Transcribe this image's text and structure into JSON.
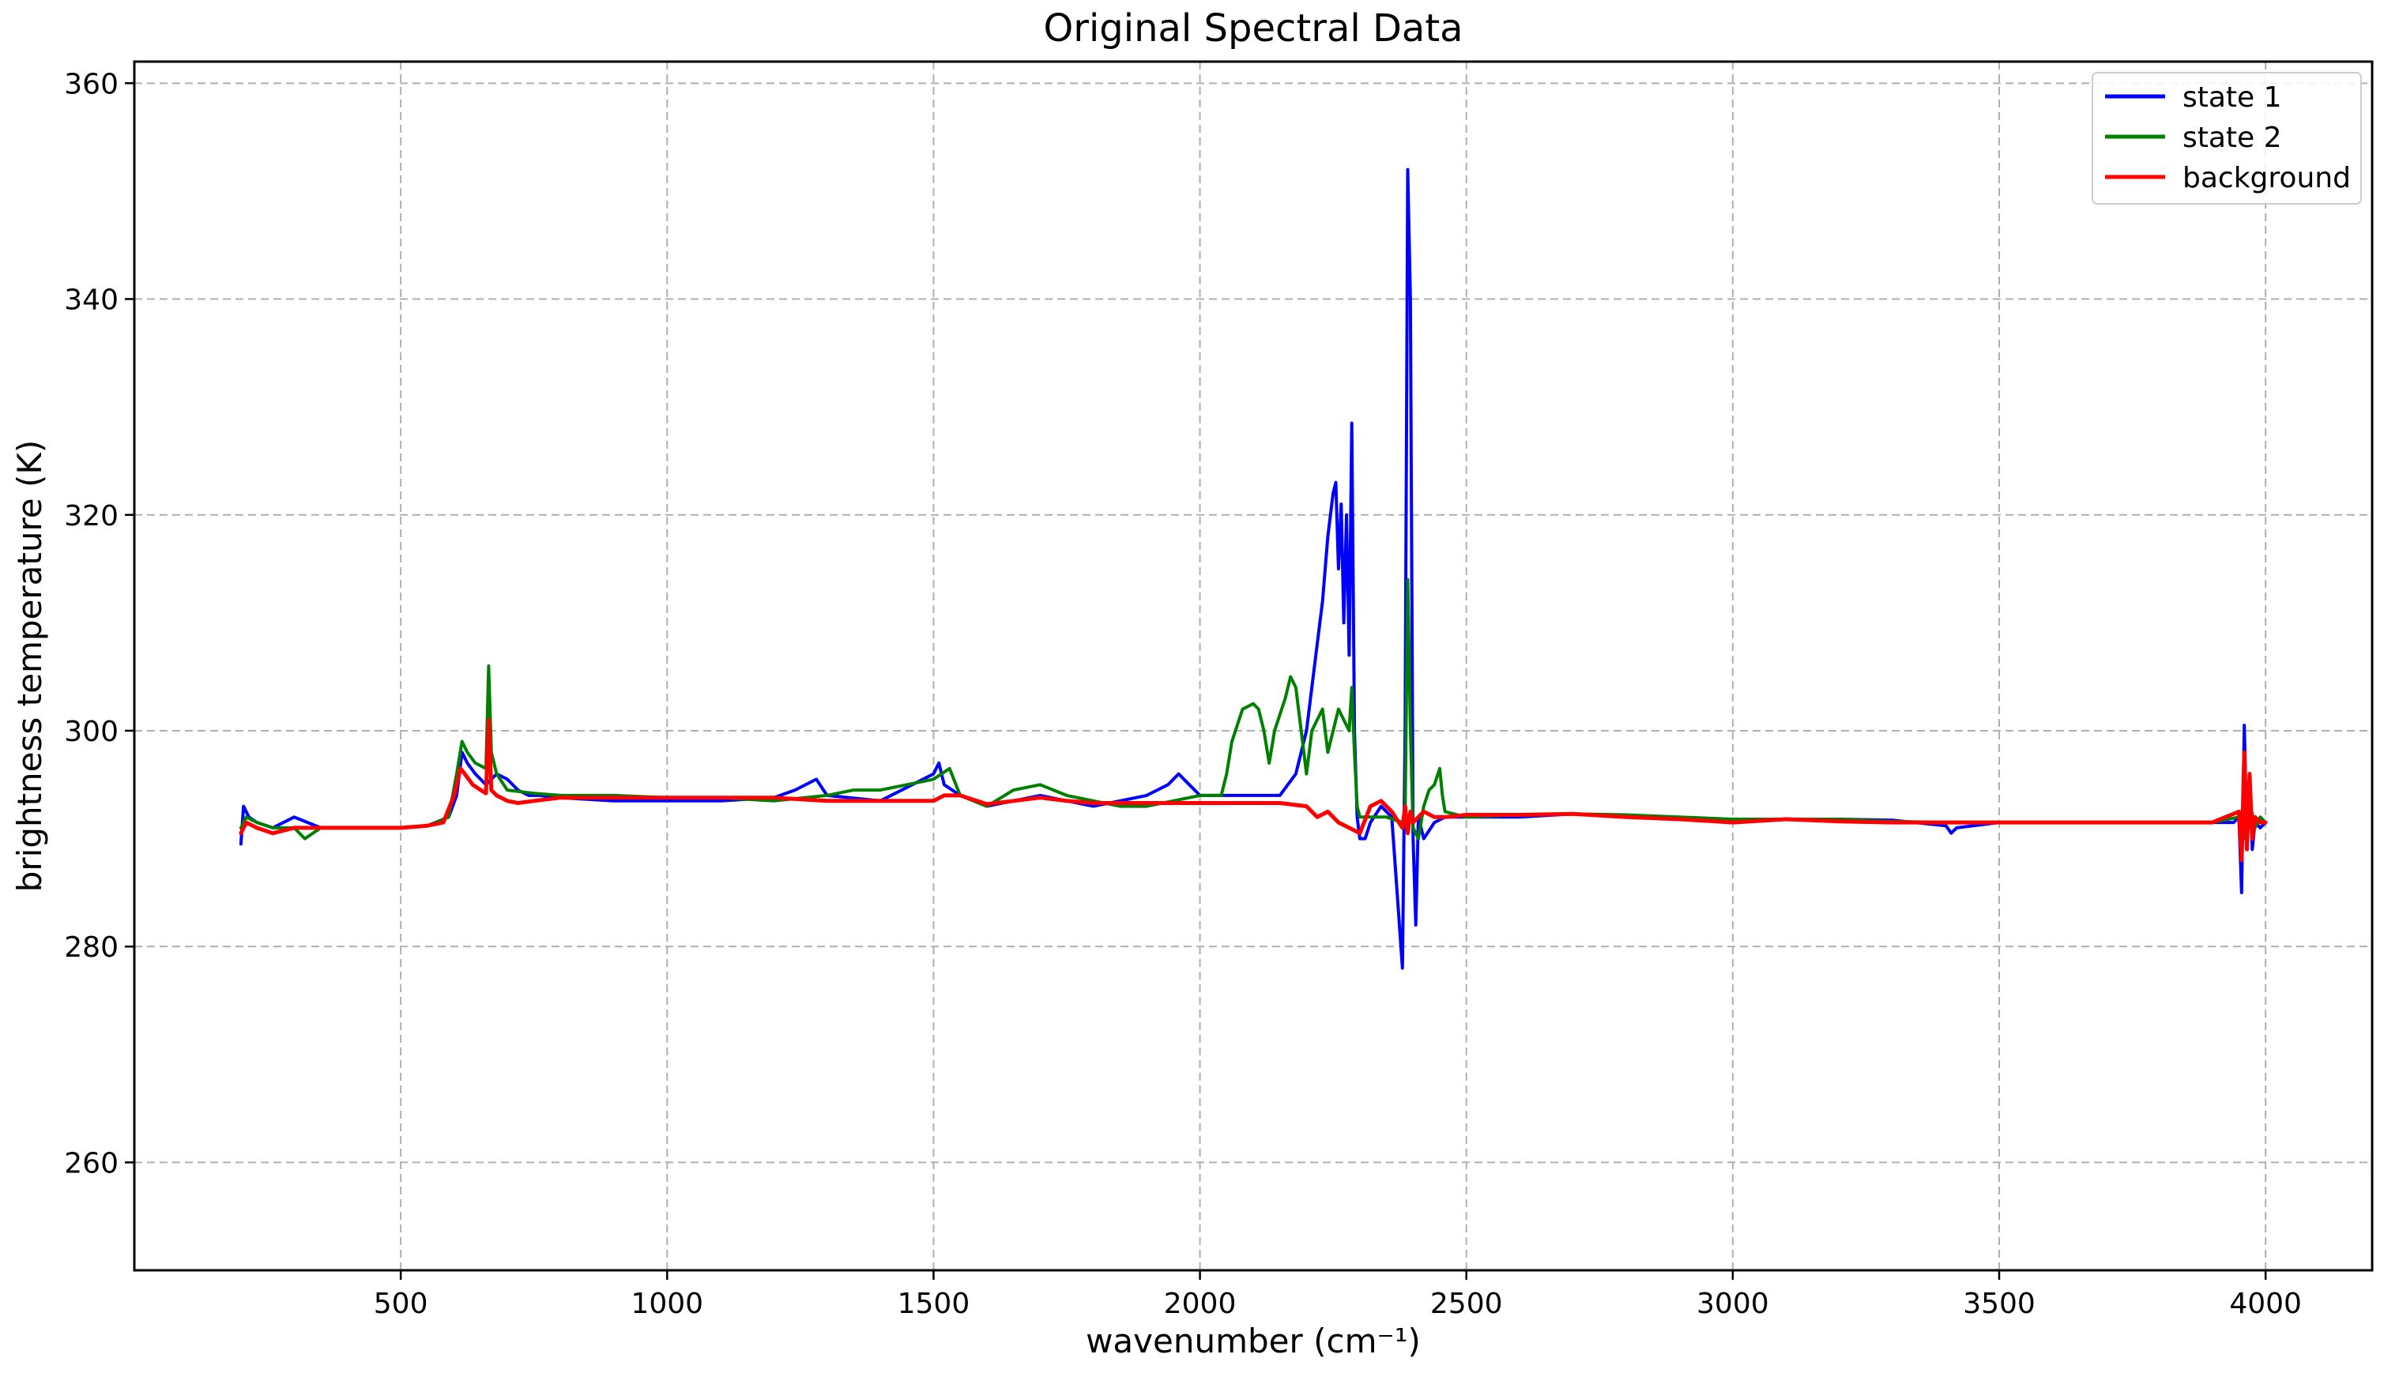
{
  "chart_data": {
    "type": "line",
    "title": "Original Spectral Data",
    "xlabel": "wavenumber (cm⁻¹)",
    "ylabel": "brightness temperature (K)",
    "xlim": [
      0,
      4200
    ],
    "ylim": [
      250,
      362
    ],
    "x_ticks": [
      500,
      1000,
      1500,
      2000,
      2500,
      3000,
      3500,
      4000
    ],
    "y_ticks": [
      260,
      280,
      300,
      320,
      340,
      360
    ],
    "grid": true,
    "legend_position": "top-right",
    "series": [
      {
        "name": "state 1",
        "color": "#0000ff",
        "x": [
          200,
          205,
          215,
          230,
          260,
          300,
          350,
          400,
          450,
          500,
          550,
          590,
          605,
          615,
          625,
          640,
          660,
          680,
          700,
          720,
          740,
          760,
          800,
          900,
          1000,
          1100,
          1200,
          1240,
          1280,
          1300,
          1400,
          1500,
          1510,
          1520,
          1550,
          1600,
          1650,
          1700,
          1750,
          1800,
          1850,
          1900,
          1940,
          1960,
          1980,
          2000,
          2050,
          2100,
          2150,
          2180,
          2200,
          2220,
          2230,
          2240,
          2250,
          2255,
          2260,
          2265,
          2270,
          2275,
          2280,
          2285,
          2290,
          2295,
          2300,
          2310,
          2320,
          2340,
          2360,
          2370,
          2380,
          2385,
          2390,
          2395,
          2400,
          2405,
          2410,
          2420,
          2440,
          2460,
          2500,
          2600,
          2700,
          2800,
          2900,
          3000,
          3100,
          3200,
          3300,
          3400,
          3410,
          3420,
          3500,
          3600,
          3700,
          3800,
          3900,
          3940,
          3950,
          3955,
          3960,
          3965,
          3970,
          3975,
          3980,
          3990,
          4000
        ],
        "y": [
          289.5,
          293,
          292,
          291.5,
          291,
          292,
          291,
          291,
          291,
          291,
          291.2,
          292,
          294,
          298,
          297,
          296,
          295,
          296,
          295.5,
          294.5,
          294,
          294,
          293.8,
          293.5,
          293.5,
          293.5,
          293.8,
          294.5,
          295.5,
          294,
          293.5,
          296,
          297,
          295,
          294,
          293,
          293.5,
          294,
          293.5,
          293,
          293.5,
          294,
          295,
          296,
          295,
          294,
          294,
          294,
          294,
          296,
          300,
          308,
          312,
          318,
          322,
          323,
          315,
          321,
          310,
          320,
          307,
          328.5,
          300,
          292,
          290,
          290,
          291.5,
          293,
          292,
          285,
          278,
          300,
          352,
          340,
          290,
          282,
          292,
          290,
          291.5,
          292,
          292,
          292,
          292.3,
          292,
          291.8,
          291.8,
          291.8,
          291.8,
          291.7,
          291.2,
          290.5,
          291,
          291.5,
          291.5,
          291.5,
          291.5,
          291.5,
          291.5,
          292,
          285,
          300.5,
          290,
          295,
          289,
          291.5,
          291,
          291.5
        ]
      },
      {
        "name": "state 2",
        "color": "#008000",
        "x": [
          200,
          210,
          230,
          260,
          300,
          320,
          350,
          400,
          450,
          500,
          550,
          590,
          605,
          615,
          625,
          640,
          660,
          665,
          670,
          680,
          700,
          750,
          800,
          900,
          1000,
          1100,
          1200,
          1300,
          1350,
          1400,
          1450,
          1500,
          1530,
          1550,
          1600,
          1650,
          1700,
          1750,
          1800,
          1850,
          1900,
          1950,
          2000,
          2040,
          2050,
          2060,
          2080,
          2100,
          2110,
          2120,
          2130,
          2140,
          2160,
          2170,
          2180,
          2190,
          2200,
          2210,
          2220,
          2230,
          2240,
          2250,
          2260,
          2270,
          2280,
          2285,
          2290,
          2295,
          2300,
          2350,
          2380,
          2385,
          2390,
          2395,
          2400,
          2410,
          2420,
          2430,
          2440,
          2450,
          2455,
          2460,
          2500,
          2600,
          2700,
          2800,
          2900,
          3000,
          3100,
          3200,
          3300,
          3400,
          3500,
          3600,
          3700,
          3800,
          3900,
          3950,
          3960,
          3970,
          3980,
          3990,
          4000
        ],
        "y": [
          291,
          292,
          291.5,
          291,
          291,
          290,
          291,
          291,
          291,
          291,
          291.2,
          292,
          296,
          299,
          298,
          297,
          296.5,
          306,
          298,
          296,
          294.5,
          294.2,
          294,
          294,
          293.8,
          293.8,
          293.5,
          294,
          294.5,
          294.5,
          295,
          295.5,
          296.5,
          294,
          293,
          294.5,
          295,
          294,
          293.5,
          293,
          293,
          293.5,
          294,
          294,
          296,
          299,
          302,
          302.5,
          302,
          300,
          297,
          300,
          303,
          305,
          304,
          300,
          296,
          300,
          301,
          302,
          298,
          300,
          302,
          301,
          300,
          304,
          298,
          293,
          292,
          292,
          291.5,
          292,
          314,
          300,
          291,
          290,
          293,
          294.5,
          295,
          296.5,
          294,
          292.5,
          292,
          292.2,
          292.3,
          292.2,
          292,
          291.8,
          291.8,
          291.8,
          291.6,
          291.5,
          291.5,
          291.5,
          291.5,
          291.5,
          291.5,
          292,
          290,
          293.5,
          291,
          292,
          291.5
        ]
      },
      {
        "name": "background",
        "color": "#ff0000",
        "x": [
          200,
          210,
          230,
          260,
          300,
          350,
          400,
          450,
          500,
          550,
          580,
          600,
          612,
          620,
          635,
          650,
          660,
          665,
          670,
          680,
          700,
          720,
          750,
          800,
          900,
          1000,
          1100,
          1200,
          1300,
          1400,
          1500,
          1520,
          1550,
          1600,
          1650,
          1700,
          1750,
          1800,
          1900,
          2000,
          2100,
          2150,
          2200,
          2220,
          2240,
          2260,
          2280,
          2300,
          2320,
          2340,
          2360,
          2380,
          2385,
          2390,
          2395,
          2400,
          2410,
          2420,
          2440,
          2460,
          2500,
          2600,
          2700,
          2800,
          2900,
          3000,
          3100,
          3200,
          3300,
          3400,
          3500,
          3600,
          3700,
          3800,
          3900,
          3950,
          3955,
          3960,
          3965,
          3970,
          3975,
          3980,
          3990,
          4000
        ],
        "y": [
          290.5,
          291.5,
          291,
          290.5,
          291,
          291,
          291,
          291,
          291,
          291.2,
          291.5,
          294,
          296.5,
          296,
          295,
          294.5,
          294.2,
          301,
          294.5,
          294,
          293.5,
          293.3,
          293.5,
          293.8,
          293.8,
          293.8,
          293.8,
          293.8,
          293.5,
          293.5,
          293.5,
          294,
          294,
          293.2,
          293.5,
          293.8,
          293.5,
          293.3,
          293.3,
          293.3,
          293.3,
          293.3,
          293,
          292,
          292.5,
          291.5,
          291,
          290.5,
          293,
          293.5,
          292.5,
          291,
          293,
          290.5,
          292.5,
          291.5,
          292,
          292.5,
          292,
          292,
          292.2,
          292.2,
          292.3,
          292,
          291.8,
          291.5,
          291.8,
          291.6,
          291.5,
          291.5,
          291.5,
          291.5,
          291.5,
          291.5,
          291.5,
          292.5,
          288,
          298,
          289,
          296,
          290,
          292,
          291.5,
          291.5
        ]
      }
    ]
  }
}
